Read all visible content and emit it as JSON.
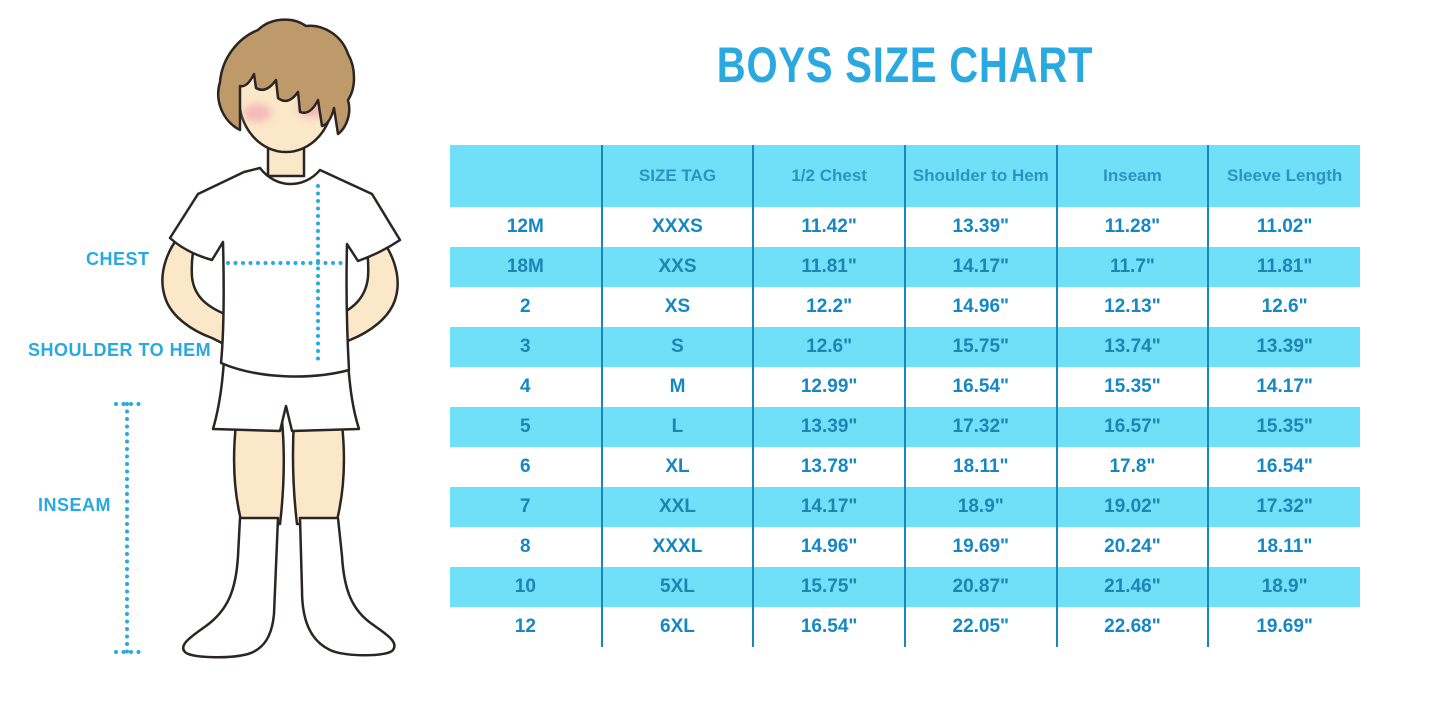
{
  "title": "BOYS SIZE CHART",
  "figure": {
    "labels": {
      "chest": "CHEST",
      "shoulder_to_hem": "SHOULDER TO HEM",
      "inseam": "INSEAM"
    }
  },
  "table": {
    "columns": [
      "",
      "SIZE TAG",
      "1/2 Chest",
      "Shoulder to Hem",
      "Inseam",
      "Sleeve Length"
    ],
    "rows": [
      [
        "12M",
        "XXXS",
        "11.42\"",
        "13.39\"",
        "11.28\"",
        "11.02\""
      ],
      [
        "18M",
        "XXS",
        "11.81\"",
        "14.17\"",
        "11.7\"",
        "11.81\""
      ],
      [
        "2",
        "XS",
        "12.2\"",
        "14.96\"",
        "12.13\"",
        "12.6\""
      ],
      [
        "3",
        "S",
        "12.6\"",
        "15.75\"",
        "13.74\"",
        "13.39\""
      ],
      [
        "4",
        "M",
        "12.99\"",
        "16.54\"",
        "15.35\"",
        "14.17\""
      ],
      [
        "5",
        "L",
        "13.39\"",
        "17.32\"",
        "16.57\"",
        "15.35\""
      ],
      [
        "6",
        "XL",
        "13.78\"",
        "18.11\"",
        "17.8\"",
        "16.54\""
      ],
      [
        "7",
        "XXL",
        "14.17\"",
        "18.9\"",
        "19.02\"",
        "17.32\""
      ],
      [
        "8",
        "XXXL",
        "14.96\"",
        "19.69\"",
        "20.24\"",
        "18.11\""
      ],
      [
        "10",
        "5XL",
        "15.75\"",
        "20.87\"",
        "21.46\"",
        "18.9\""
      ],
      [
        "12",
        "6XL",
        "16.54\"",
        "22.05\"",
        "22.68\"",
        "19.69\""
      ]
    ]
  },
  "colors": {
    "accent": "#29a9e0",
    "band": "#6fe0f8",
    "separator": "#1987b8",
    "cell_text": "#1687c3",
    "cell_text_on_band": "#1e84b4",
    "header_text": "#2d92c2",
    "skin": "#fbe8c8",
    "hair": "#be9a6a",
    "outline": "#2b2523",
    "blush": "#f3a9b6"
  }
}
